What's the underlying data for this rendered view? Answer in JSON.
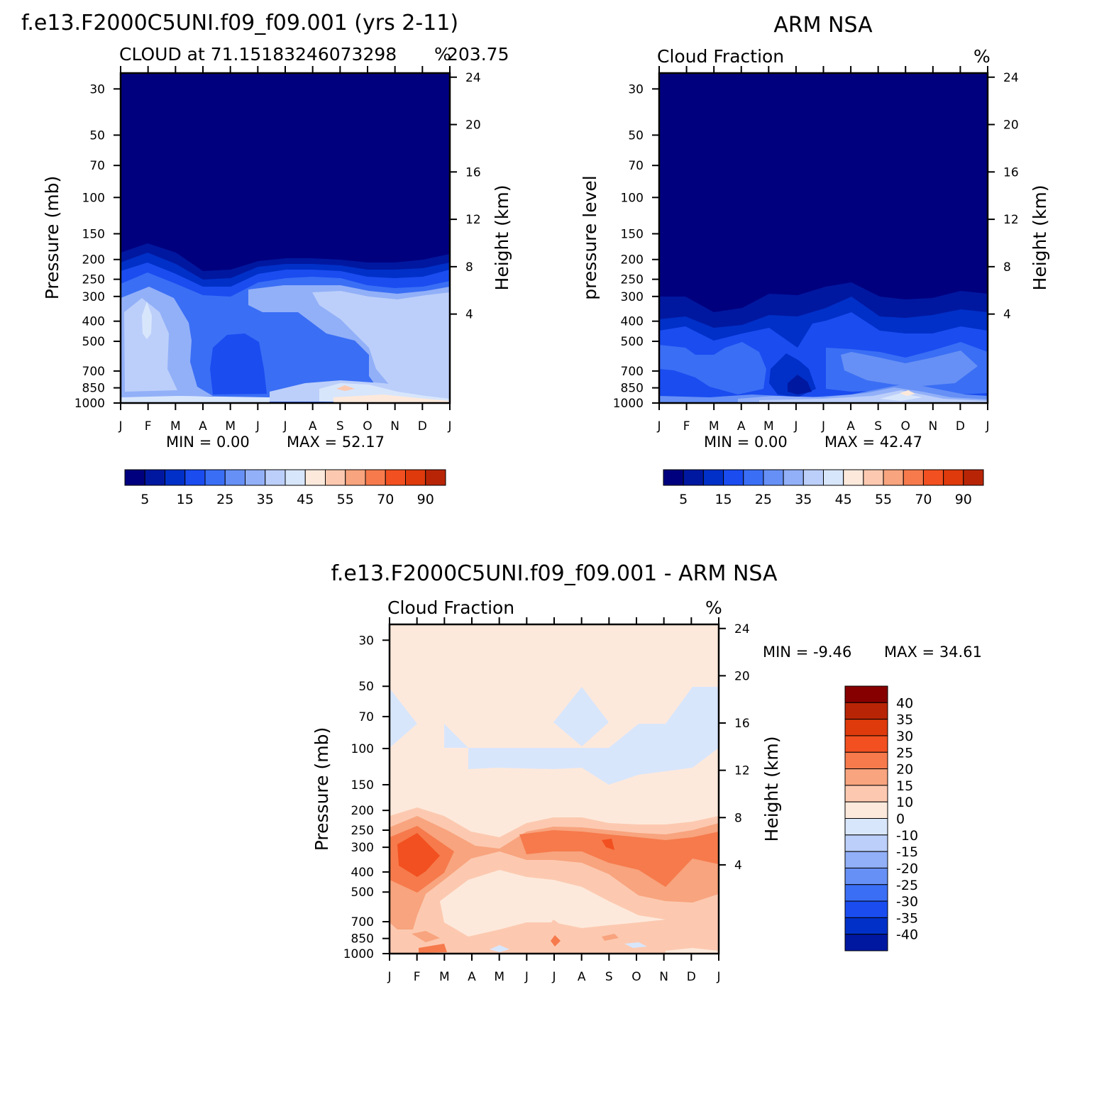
{
  "colors": {
    "seq": [
      "#00007f",
      "#0018a0",
      "#0030c8",
      "#1a4cf0",
      "#3a6ef5",
      "#6690f5",
      "#92b0f8",
      "#bccffa",
      "#d8e6fc",
      "#fde9db",
      "#fcc9b0",
      "#f8a47e",
      "#f67a4c",
      "#f25020",
      "#de3a0c",
      "#b82506",
      "#860000"
    ],
    "diff": [
      "#00007f",
      "#0018a0",
      "#0030c8",
      "#1a4cf0",
      "#3a6ef5",
      "#6690f5",
      "#92b0f8",
      "#bccffa",
      "#d8e6fc",
      "#fde9db",
      "#fcc9b0",
      "#f8a47e",
      "#f67a4c",
      "#f25020",
      "#de3a0c",
      "#b82506",
      "#860000"
    ]
  },
  "chart_data": [
    {
      "id": "model",
      "type": "heatmap",
      "title": "f.e13.F2000C5UNI.f09_f09.001 (yrs 2-11)",
      "left_string": "CLOUD at 71.15183246073298",
      "center_string": "203.75",
      "units": "%",
      "xlabel": "",
      "ylabel": "Pressure (mb)",
      "ylabel_right": "Height (km)",
      "x_ticks": [
        "J",
        "F",
        "M",
        "A",
        "M",
        "J",
        "J",
        "A",
        "S",
        "O",
        "N",
        "D",
        "J"
      ],
      "y_ticks": [
        30,
        50,
        70,
        100,
        150,
        200,
        250,
        300,
        400,
        500,
        700,
        850,
        1000
      ],
      "y_right_ticks": [
        4,
        8,
        12,
        16,
        20,
        24
      ],
      "ylim": [
        1000,
        20
      ],
      "y_scale": "log",
      "min_text": "MIN =    0.00",
      "max_text": "MAX =   52.17",
      "min": 0.0,
      "max": 52.17,
      "colorbar_labels": [
        "5",
        "15",
        "25",
        "35",
        "45",
        "55",
        "70",
        "90"
      ],
      "colorbar_orientation": "horizontal"
    },
    {
      "id": "obs",
      "type": "heatmap",
      "title": "ARM NSA",
      "left_string": "Cloud Fraction",
      "units": "%",
      "xlabel": "",
      "ylabel": "pressure level",
      "ylabel_right": "Height (km)",
      "x_ticks": [
        "J",
        "F",
        "M",
        "A",
        "M",
        "J",
        "J",
        "A",
        "S",
        "O",
        "N",
        "D",
        "J"
      ],
      "y_ticks": [
        30,
        50,
        70,
        100,
        150,
        200,
        250,
        300,
        400,
        500,
        700,
        850,
        1000
      ],
      "y_right_ticks": [
        4,
        8,
        12,
        16,
        20,
        24
      ],
      "ylim": [
        1000,
        20
      ],
      "y_scale": "log",
      "min_text": "MIN =    0.00",
      "max_text": "MAX =   42.47",
      "min": 0.0,
      "max": 42.47,
      "colorbar_labels": [
        "5",
        "15",
        "25",
        "35",
        "45",
        "55",
        "70",
        "90"
      ],
      "colorbar_orientation": "horizontal"
    },
    {
      "id": "diff",
      "type": "heatmap",
      "title": "f.e13.F2000C5UNI.f09_f09.001 - ARM NSA",
      "left_string": "Cloud Fraction",
      "units": "%",
      "xlabel": "",
      "ylabel": "Pressure (mb)",
      "ylabel_right": "Height (km)",
      "x_ticks": [
        "J",
        "F",
        "M",
        "A",
        "M",
        "J",
        "J",
        "A",
        "S",
        "O",
        "N",
        "D",
        "J"
      ],
      "y_ticks": [
        30,
        50,
        70,
        100,
        150,
        200,
        250,
        300,
        400,
        500,
        700,
        850,
        1000
      ],
      "y_right_ticks": [
        4,
        8,
        12,
        16,
        20,
        24
      ],
      "ylim": [
        1000,
        20
      ],
      "y_scale": "log",
      "min_text": "MIN =   -9.46",
      "max_text": "MAX =   34.61",
      "min": -9.46,
      "max": 34.61,
      "colorbar_labels": [
        "40",
        "35",
        "30",
        "25",
        "20",
        "15",
        "10",
        "0",
        "-10",
        "-15",
        "-20",
        "-25",
        "-30",
        "-35",
        "-40"
      ],
      "colorbar_orientation": "vertical"
    }
  ]
}
